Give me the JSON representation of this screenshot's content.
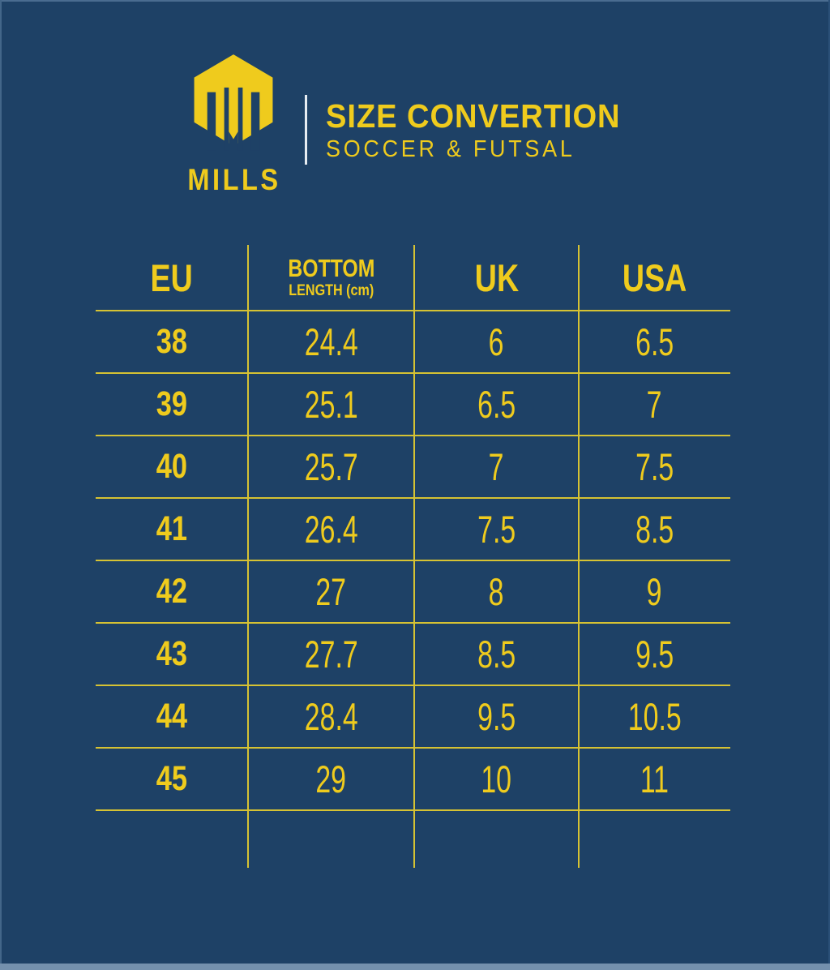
{
  "logo": {
    "brand": "MILLS",
    "icon": "mills-hexagon-m-icon"
  },
  "header": {
    "title": "SIZE CONVERTION",
    "subtitle": "SOCCER & FUTSAL"
  },
  "colors": {
    "background": "#1e4166",
    "accent_yellow": "#efcb1d",
    "grid_line_yellow": "#d6c233",
    "divider_white": "#e6ecf2"
  },
  "chart_data": {
    "type": "table",
    "title": "SIZE CONVERTION — SOCCER & FUTSAL",
    "columns": [
      {
        "label": "EU",
        "sublabel": ""
      },
      {
        "label": "BOTTOM",
        "sublabel": "LENGTH (cm)"
      },
      {
        "label": "UK",
        "sublabel": ""
      },
      {
        "label": "USA",
        "sublabel": ""
      }
    ],
    "rows": [
      [
        "38",
        "24.4",
        "6",
        "6.5"
      ],
      [
        "39",
        "25.1",
        "6.5",
        "7"
      ],
      [
        "40",
        "25.7",
        "7",
        "7.5"
      ],
      [
        "41",
        "26.4",
        "7.5",
        "8.5"
      ],
      [
        "42",
        "27",
        "8",
        "9"
      ],
      [
        "43",
        "27.7",
        "8.5",
        "9.5"
      ],
      [
        "44",
        "28.4",
        "9.5",
        "10.5"
      ],
      [
        "45",
        "29",
        "10",
        "11"
      ]
    ],
    "layout": {
      "grid": "yellow rule lines, 3 inner column dividers, 9 horizontal rules",
      "legend_position": "none"
    }
  }
}
